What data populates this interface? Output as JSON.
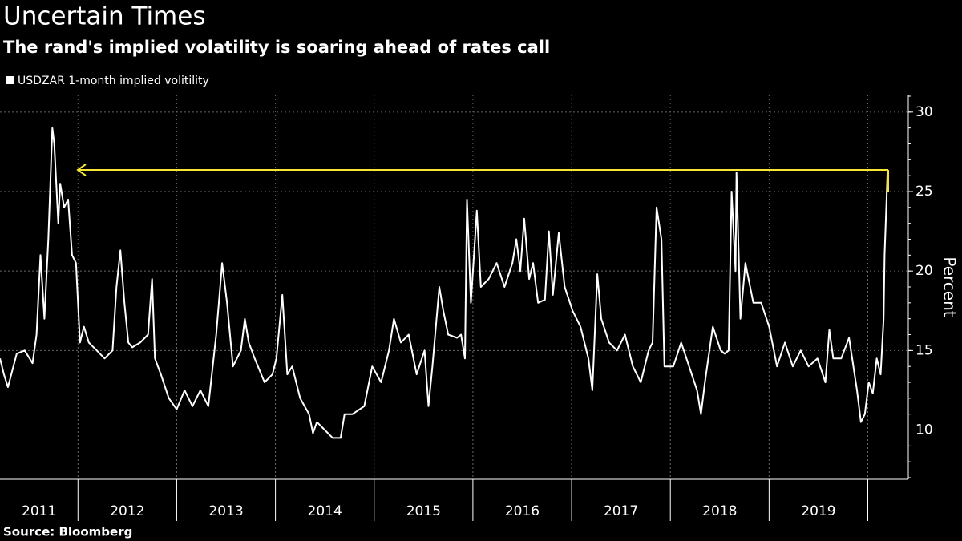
{
  "chart_data": {
    "type": "line",
    "title": "Uncertain Times",
    "subtitle": "The rand's implied volatility is soaring ahead of rates call",
    "y_label": "Percent",
    "source": "Source: Bloomberg",
    "year_labels": [
      "2011",
      "2012",
      "2013",
      "2014",
      "2015",
      "2016",
      "2017",
      "2018",
      "2019"
    ],
    "xlim": [
      2011.21,
      2020.41
    ],
    "xticks": [
      2012,
      2013,
      2014,
      2015,
      2016,
      2017,
      2018,
      2019,
      2020
    ],
    "ylim": [
      6.9,
      31.1
    ],
    "yticks": [
      10,
      15,
      20,
      25,
      30
    ],
    "grid": true,
    "series": [
      {
        "name": "USDZAR 1-month implied volitility",
        "color": "#ffffff",
        "x": [
          2011.21,
          2011.25,
          2011.29,
          2011.38,
          2011.46,
          2011.54,
          2011.58,
          2011.62,
          2011.66,
          2011.7,
          2011.74,
          2011.76,
          2011.8,
          2011.82,
          2011.86,
          2011.9,
          2011.94,
          2011.98,
          2012.02,
          2012.06,
          2012.11,
          2012.19,
          2012.27,
          2012.35,
          2012.39,
          2012.43,
          2012.47,
          2012.51,
          2012.55,
          2012.63,
          2012.71,
          2012.75,
          2012.78,
          2012.84,
          2012.92,
          2013.0,
          2013.08,
          2013.16,
          2013.24,
          2013.32,
          2013.4,
          2013.46,
          2013.51,
          2013.57,
          2013.65,
          2013.69,
          2013.73,
          2013.79,
          2013.89,
          2013.97,
          2014.01,
          2014.07,
          2014.12,
          2014.17,
          2014.25,
          2014.34,
          2014.38,
          2014.42,
          2014.5,
          2014.58,
          2014.66,
          2014.7,
          2014.78,
          2014.9,
          2014.98,
          2015.07,
          2015.15,
          2015.2,
          2015.27,
          2015.35,
          2015.43,
          2015.51,
          2015.55,
          2015.59,
          2015.66,
          2015.7,
          2015.75,
          2015.84,
          2015.88,
          2015.92,
          2015.94,
          2015.98,
          2016.04,
          2016.08,
          2016.16,
          2016.24,
          2016.32,
          2016.4,
          2016.44,
          2016.48,
          2016.52,
          2016.57,
          2016.61,
          2016.66,
          2016.73,
          2016.77,
          2016.81,
          2016.87,
          2016.93,
          2017.01,
          2017.09,
          2017.17,
          2017.21,
          2017.26,
          2017.3,
          2017.38,
          2017.46,
          2017.54,
          2017.62,
          2017.7,
          2017.78,
          2017.82,
          2017.86,
          2017.91,
          2017.94,
          2018.03,
          2018.11,
          2018.19,
          2018.27,
          2018.31,
          2018.35,
          2018.43,
          2018.51,
          2018.55,
          2018.59,
          2018.62,
          2018.66,
          2018.67,
          2018.71,
          2018.76,
          2018.84,
          2018.92,
          2019.0,
          2019.08,
          2019.16,
          2019.24,
          2019.32,
          2019.4,
          2019.49,
          2019.57,
          2019.61,
          2019.65,
          2019.73,
          2019.81,
          2019.89,
          2019.93,
          2019.97,
          2020.01,
          2020.05,
          2020.09,
          2020.13,
          2020.16,
          2020.17,
          2020.19,
          2020.2
        ],
        "values": [
          14.5,
          13.5,
          12.7,
          14.8,
          15,
          14.2,
          16,
          21,
          17,
          22,
          29,
          28,
          23,
          25.5,
          24,
          24.5,
          21,
          20.5,
          15.5,
          16.5,
          15.5,
          15,
          14.5,
          15,
          19,
          21.3,
          18,
          15.5,
          15.2,
          15.5,
          16,
          19.5,
          14.5,
          13.5,
          12,
          11.3,
          12.5,
          11.5,
          12.5,
          11.5,
          16,
          20.5,
          18,
          14,
          15,
          17,
          15.5,
          14.5,
          13,
          13.5,
          14.5,
          18.5,
          13.5,
          14,
          12,
          11,
          9.8,
          10.5,
          10,
          9.5,
          9.5,
          11,
          11,
          11.5,
          14,
          13,
          15,
          17,
          15.5,
          16,
          13.5,
          15,
          11.5,
          14,
          19,
          17.5,
          16,
          15.8,
          16,
          14.5,
          24.5,
          18,
          23.8,
          19,
          19.5,
          20.5,
          19,
          20.5,
          22,
          20,
          23.3,
          19.5,
          20.5,
          18,
          18.2,
          22.5,
          18.5,
          22.4,
          19,
          17.5,
          16.5,
          14.5,
          12.5,
          19.8,
          17,
          15.5,
          15,
          16,
          14,
          13,
          15,
          15.5,
          24,
          22,
          14,
          14,
          15.5,
          14,
          12.5,
          11,
          13,
          16.5,
          15,
          14.8,
          15,
          25,
          20,
          26.2,
          17,
          20.5,
          18,
          18,
          16.5,
          14,
          15.5,
          14,
          15,
          14,
          14.5,
          13,
          16.3,
          14.5,
          14.5,
          15.8,
          12.5,
          10.5,
          11,
          13,
          12.3,
          14.5,
          13.5,
          17,
          21,
          24.5,
          26.3
        ]
      }
    ]
  }
}
